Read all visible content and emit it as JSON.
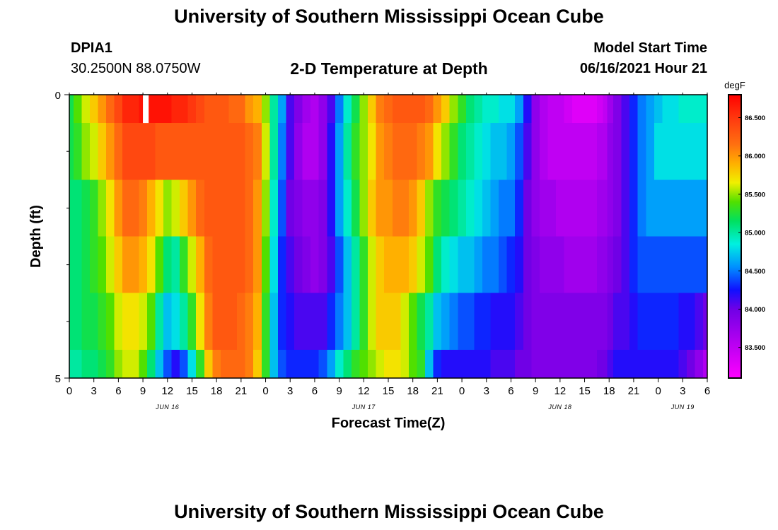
{
  "page": {
    "title_top": "University of Southern Mississippi Ocean Cube",
    "title_bottom": "University of Southern Mississippi Ocean Cube",
    "station_id": "DPIA1",
    "station_coords": "30.2500N  88.0750W",
    "plot_title": "2-D Temperature at Depth",
    "model_start_label": "Model Start Time",
    "model_start_value": "06/16/2021 Hour 21"
  },
  "chart_data": {
    "type": "heatmap",
    "title": "2-D Temperature at Depth",
    "xlabel": "Forecast Time(Z)",
    "ylabel": "Depth (ft)",
    "x_unit": "hours since 06/16/2021 00Z",
    "x_range": [
      0,
      78
    ],
    "x_ticks": [
      {
        "t": 0,
        "label": "0"
      },
      {
        "t": 3,
        "label": "3"
      },
      {
        "t": 6,
        "label": "6"
      },
      {
        "t": 9,
        "label": "9"
      },
      {
        "t": 12,
        "label": "12"
      },
      {
        "t": 15,
        "label": "15"
      },
      {
        "t": 18,
        "label": "18"
      },
      {
        "t": 21,
        "label": "21"
      },
      {
        "t": 24,
        "label": "0"
      },
      {
        "t": 27,
        "label": "3"
      },
      {
        "t": 30,
        "label": "6"
      },
      {
        "t": 33,
        "label": "9"
      },
      {
        "t": 36,
        "label": "12"
      },
      {
        "t": 39,
        "label": "15"
      },
      {
        "t": 42,
        "label": "18"
      },
      {
        "t": 45,
        "label": "21"
      },
      {
        "t": 48,
        "label": "0"
      },
      {
        "t": 51,
        "label": "3"
      },
      {
        "t": 54,
        "label": "6"
      },
      {
        "t": 57,
        "label": "9"
      },
      {
        "t": 60,
        "label": "12"
      },
      {
        "t": 63,
        "label": "15"
      },
      {
        "t": 66,
        "label": "18"
      },
      {
        "t": 69,
        "label": "21"
      },
      {
        "t": 72,
        "label": "0"
      },
      {
        "t": 75,
        "label": "3"
      },
      {
        "t": 78,
        "label": "6"
      }
    ],
    "date_labels": [
      {
        "t": 12,
        "label": "JUN 16"
      },
      {
        "t": 36,
        "label": "JUN 17"
      },
      {
        "t": 60,
        "label": "JUN 18"
      },
      {
        "t": 75,
        "label": "JUN 19"
      }
    ],
    "y_range": [
      0,
      5
    ],
    "y_ticks": [
      {
        "v": 0,
        "label": "0"
      },
      {
        "v": 5,
        "label": "5"
      }
    ],
    "y_minor_ticks": [
      1,
      2,
      3,
      4
    ],
    "depth_layers": [
      {
        "top": 0.0,
        "bottom": 0.5
      },
      {
        "top": 0.5,
        "bottom": 1.5
      },
      {
        "top": 1.5,
        "bottom": 2.5
      },
      {
        "top": 2.5,
        "bottom": 3.5
      },
      {
        "top": 3.5,
        "bottom": 4.5
      },
      {
        "top": 4.5,
        "bottom": 5.0
      }
    ],
    "times": [
      0,
      1,
      2,
      3,
      4,
      5,
      6,
      7,
      8,
      9,
      10,
      11,
      12,
      13,
      14,
      15,
      16,
      17,
      18,
      19,
      20,
      21,
      22,
      23,
      24,
      25,
      26,
      27,
      28,
      29,
      30,
      31,
      32,
      33,
      34,
      35,
      36,
      37,
      38,
      39,
      40,
      41,
      42,
      43,
      44,
      45,
      46,
      47,
      48,
      49,
      50,
      51,
      52,
      53,
      54,
      55,
      56,
      57,
      58,
      59,
      60,
      61,
      62,
      63,
      64,
      65,
      65.5,
      66,
      67,
      68,
      69,
      70,
      71,
      72,
      73,
      74,
      75,
      76,
      77,
      78
    ],
    "missing": [
      {
        "layer": 0,
        "t_start": 9,
        "t_end": 9.7
      }
    ],
    "values_degF": [
      [
        85.2,
        85.4,
        85.6,
        85.8,
        86.0,
        86.2,
        86.4,
        86.6,
        86.6,
        86.7,
        86.7,
        86.7,
        86.7,
        86.6,
        86.6,
        86.5,
        86.4,
        86.3,
        86.3,
        86.3,
        86.2,
        86.2,
        86.0,
        85.9,
        85.5,
        85.0,
        84.6,
        84.1,
        83.9,
        83.7,
        83.6,
        83.8,
        84.1,
        84.5,
        84.9,
        85.2,
        85.5,
        85.8,
        86.1,
        86.2,
        86.3,
        86.3,
        86.3,
        86.3,
        86.2,
        86.0,
        85.8,
        85.5,
        85.3,
        85.1,
        85.0,
        84.9,
        84.9,
        84.8,
        84.8,
        84.6,
        84.2,
        83.8,
        83.6,
        83.5,
        83.5,
        83.4,
        83.3,
        83.3,
        83.3,
        83.4,
        83.5,
        83.7,
        83.9,
        84.1,
        84.3,
        84.5,
        84.6,
        84.7,
        84.8,
        84.8,
        84.9,
        84.9,
        84.9,
        84.9
      ],
      [
        85.2,
        85.3,
        85.5,
        85.6,
        85.8,
        86.0,
        86.2,
        86.4,
        86.4,
        86.4,
        86.4,
        86.3,
        86.3,
        86.3,
        86.3,
        86.3,
        86.3,
        86.3,
        86.3,
        86.3,
        86.3,
        86.3,
        86.2,
        86.1,
        85.6,
        85.0,
        84.5,
        84.1,
        83.8,
        83.6,
        83.6,
        83.8,
        84.2,
        84.6,
        85.0,
        85.3,
        85.5,
        85.7,
        86.0,
        86.1,
        86.2,
        86.2,
        86.2,
        86.1,
        86.0,
        85.7,
        85.5,
        85.3,
        85.1,
        85.0,
        84.9,
        84.8,
        84.7,
        84.7,
        84.6,
        84.4,
        84.1,
        83.8,
        83.6,
        83.5,
        83.5,
        83.5,
        83.5,
        83.5,
        83.5,
        83.6,
        83.6,
        83.8,
        83.9,
        84.1,
        84.3,
        84.5,
        84.6,
        84.8,
        84.8,
        84.8,
        84.8,
        84.8,
        84.8,
        84.8
      ],
      [
        85.1,
        85.1,
        85.2,
        85.3,
        85.5,
        85.7,
        86.0,
        86.2,
        86.2,
        86.1,
        85.9,
        85.7,
        85.5,
        85.6,
        85.8,
        86.0,
        86.2,
        86.3,
        86.3,
        86.3,
        86.3,
        86.3,
        86.2,
        86.0,
        85.5,
        84.9,
        84.4,
        84.0,
        83.9,
        83.8,
        83.8,
        83.9,
        84.2,
        84.6,
        84.9,
        85.2,
        85.5,
        85.8,
        86.0,
        86.0,
        86.1,
        86.1,
        86.0,
        85.8,
        85.5,
        85.3,
        85.2,
        85.1,
        85.0,
        84.9,
        84.8,
        84.7,
        84.6,
        84.5,
        84.5,
        84.3,
        84.0,
        83.8,
        83.7,
        83.7,
        83.6,
        83.6,
        83.6,
        83.6,
        83.6,
        83.7,
        83.7,
        83.8,
        83.9,
        84.1,
        84.3,
        84.5,
        84.6,
        84.6,
        84.6,
        84.6,
        84.6,
        84.6,
        84.6,
        84.6
      ],
      [
        85.1,
        85.1,
        85.2,
        85.3,
        85.4,
        85.6,
        85.8,
        86.0,
        86.0,
        85.9,
        85.7,
        85.4,
        85.1,
        85.0,
        85.3,
        85.6,
        85.9,
        86.2,
        86.3,
        86.3,
        86.3,
        86.3,
        86.2,
        86.0,
        85.4,
        84.8,
        84.3,
        84.1,
        84.0,
        83.9,
        83.8,
        83.9,
        84.1,
        84.4,
        84.7,
        85.0,
        85.3,
        85.6,
        85.8,
        85.9,
        85.9,
        85.9,
        85.8,
        85.6,
        85.4,
        85.1,
        84.9,
        84.8,
        84.7,
        84.7,
        84.6,
        84.5,
        84.5,
        84.4,
        84.3,
        84.2,
        84.0,
        83.9,
        83.8,
        83.8,
        83.8,
        83.7,
        83.7,
        83.7,
        83.7,
        83.8,
        83.8,
        83.9,
        84.0,
        84.1,
        84.3,
        84.4,
        84.4,
        84.4,
        84.4,
        84.4,
        84.4,
        84.4,
        84.4,
        84.4
      ],
      [
        85.1,
        85.1,
        85.2,
        85.2,
        85.3,
        85.4,
        85.6,
        85.7,
        85.7,
        85.6,
        85.4,
        85.0,
        84.7,
        84.8,
        85.0,
        85.3,
        85.7,
        86.1,
        86.3,
        86.3,
        86.3,
        86.2,
        86.1,
        85.9,
        85.3,
        84.7,
        84.3,
        84.2,
        84.1,
        84.1,
        84.1,
        84.1,
        84.3,
        84.5,
        84.7,
        85.0,
        85.3,
        85.6,
        85.8,
        85.8,
        85.8,
        85.6,
        85.4,
        85.2,
        85.0,
        84.7,
        84.6,
        84.5,
        84.4,
        84.4,
        84.3,
        84.3,
        84.2,
        84.2,
        84.2,
        84.1,
        84.0,
        83.9,
        83.9,
        83.9,
        83.9,
        83.9,
        83.9,
        83.9,
        83.9,
        83.9,
        83.9,
        84.0,
        84.1,
        84.1,
        84.2,
        84.3,
        84.3,
        84.3,
        84.3,
        84.3,
        84.2,
        84.2,
        84.1,
        84.0
      ],
      [
        85.0,
        85.0,
        85.1,
        85.1,
        85.2,
        85.3,
        85.5,
        85.6,
        85.6,
        85.4,
        85.1,
        84.7,
        84.4,
        84.2,
        84.4,
        84.8,
        85.3,
        85.8,
        86.1,
        86.2,
        86.2,
        86.2,
        86.1,
        85.8,
        85.3,
        84.7,
        84.4,
        84.3,
        84.3,
        84.3,
        84.3,
        84.4,
        84.6,
        84.9,
        85.1,
        85.3,
        85.4,
        85.5,
        85.6,
        85.7,
        85.7,
        85.6,
        85.4,
        85.3,
        84.7,
        84.3,
        84.2,
        84.2,
        84.2,
        84.2,
        84.2,
        84.2,
        84.1,
        84.1,
        84.1,
        84.0,
        84.0,
        83.9,
        83.9,
        83.9,
        83.9,
        83.9,
        83.9,
        83.9,
        83.9,
        84.0,
        84.0,
        84.1,
        84.2,
        84.2,
        84.2,
        84.2,
        84.2,
        84.2,
        84.2,
        84.2,
        84.1,
        84.0,
        83.8,
        83.6
      ]
    ],
    "colorbar": {
      "unit": "degF",
      "range": [
        83.1,
        86.8
      ],
      "tick_values": [
        83.5,
        84.0,
        84.5,
        85.0,
        85.5,
        86.0,
        86.5
      ],
      "tick_labels": [
        "83.500",
        "84.000",
        "84.500",
        "85.000",
        "85.500",
        "86.000",
        "86.500"
      ],
      "stops": [
        {
          "v": 83.1,
          "color": "#ff00ff"
        },
        {
          "v": 83.6,
          "color": "#b000f0"
        },
        {
          "v": 84.0,
          "color": "#7000e6"
        },
        {
          "v": 84.25,
          "color": "#1010ff"
        },
        {
          "v": 84.55,
          "color": "#0090ff"
        },
        {
          "v": 84.85,
          "color": "#00f0e0"
        },
        {
          "v": 85.15,
          "color": "#00e060"
        },
        {
          "v": 85.4,
          "color": "#50e000"
        },
        {
          "v": 85.65,
          "color": "#f0f000"
        },
        {
          "v": 85.9,
          "color": "#ffb000"
        },
        {
          "v": 86.15,
          "color": "#ff7010"
        },
        {
          "v": 86.45,
          "color": "#ff4010"
        },
        {
          "v": 86.8,
          "color": "#ff0000"
        }
      ]
    }
  }
}
